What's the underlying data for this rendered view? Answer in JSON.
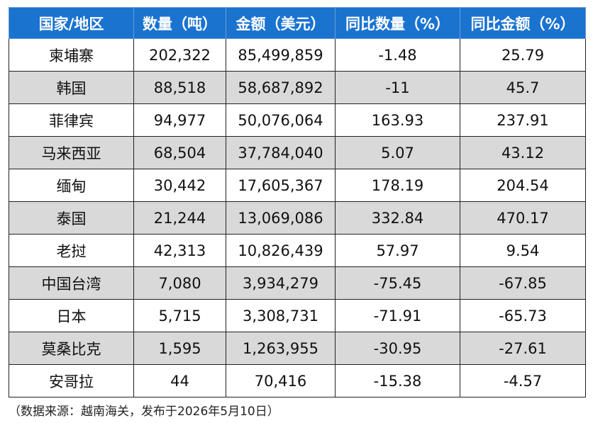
{
  "table": {
    "headers": [
      "国家/地区",
      "数量（吨）",
      "金额（美元）",
      "同比数量（%）",
      "同比金额（%）"
    ],
    "rows": [
      [
        "柬埔寨",
        "202,322",
        "85,499,859",
        "-1.48",
        "25.79"
      ],
      [
        "韩国",
        "88,518",
        "58,687,892",
        "-11",
        "45.7"
      ],
      [
        "菲律宾",
        "94,977",
        "50,076,064",
        "163.93",
        "237.91"
      ],
      [
        "马来西亚",
        "68,504",
        "37,784,040",
        "5.07",
        "43.12"
      ],
      [
        "缅甸",
        "30,442",
        "17,605,367",
        "178.19",
        "204.54"
      ],
      [
        "泰国",
        "21,244",
        "13,069,086",
        "332.84",
        "470.17"
      ],
      [
        "老挝",
        "42,313",
        "10,826,439",
        "57.97",
        "9.54"
      ],
      [
        "中国台湾",
        "7,080",
        "3,934,279",
        "-75.45",
        "-67.85"
      ],
      [
        "日本",
        "5,715",
        "3,308,731",
        "-71.91",
        "-65.73"
      ],
      [
        "莫桑比克",
        "1,595",
        "1,263,955",
        "-30.95",
        "-27.61"
      ],
      [
        "安哥拉",
        "44",
        "70,416",
        "-15.38",
        "-4.57"
      ]
    ]
  },
  "footnote": "（数据来源：越南海关，发布于2026年5月10日）",
  "colors": {
    "header_bg": "#1a73cf",
    "header_text": "#ffffff",
    "alt_row_bg": "#d9d9d9",
    "row_bg": "#ffffff"
  }
}
